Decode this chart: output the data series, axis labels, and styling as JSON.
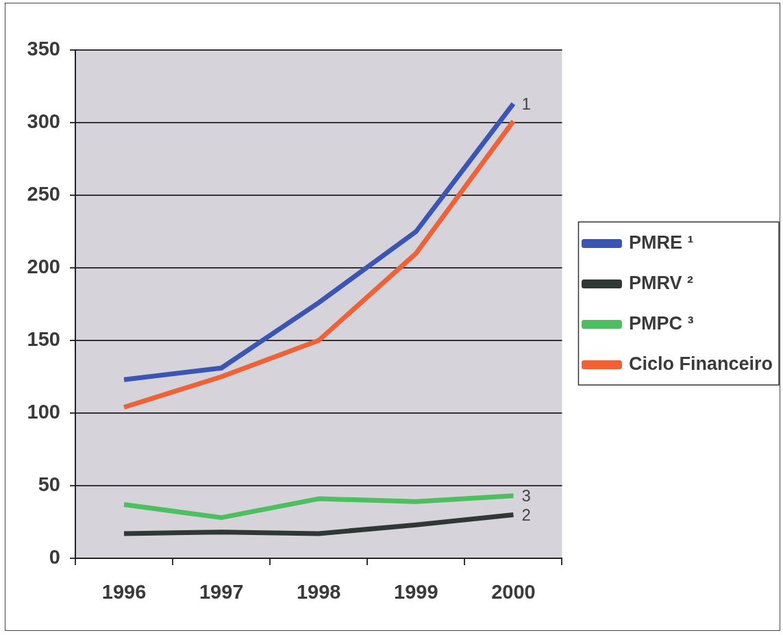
{
  "chart_data": {
    "type": "line",
    "categories": [
      "1996",
      "1997",
      "1998",
      "1999",
      "2000"
    ],
    "series": [
      {
        "name": "PMRE ¹",
        "color": "#3b55b5",
        "values": [
          123,
          131,
          176,
          225,
          313
        ]
      },
      {
        "name": "PMRV ²",
        "color": "#2f3834",
        "values": [
          17,
          18,
          17,
          23,
          30
        ]
      },
      {
        "name": "PMPC ³",
        "color": "#4cbf5e",
        "values": [
          37,
          28,
          41,
          39,
          43
        ]
      },
      {
        "name": "Ciclo Financeiro",
        "color": "#ef6136",
        "values": [
          104,
          125,
          150,
          210,
          301
        ]
      }
    ],
    "ylim": [
      0,
      350
    ],
    "yticks": [
      0,
      50,
      100,
      150,
      200,
      250,
      300,
      350
    ],
    "grid": "y",
    "legend": "right",
    "marker": "none",
    "line_style": "solid",
    "annotations": [
      {
        "text": "1",
        "x": "2000",
        "y": 313
      },
      {
        "text": "2",
        "x": "2000",
        "y": 30
      },
      {
        "text": "3",
        "x": "2000",
        "y": 43
      }
    ]
  }
}
